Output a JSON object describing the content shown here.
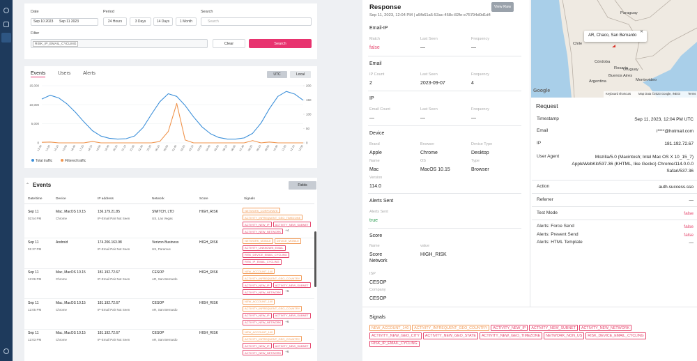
{
  "filters": {
    "date_label": "Date",
    "date_from": "Sep 10 2023",
    "date_to": "Sep 11 2023",
    "period_label": "Period",
    "periods": [
      "24 Hours",
      "3 Days",
      "14 Days",
      "1 Month"
    ],
    "search_label": "Search",
    "search_placeholder": "Search",
    "filter_label": "Filter",
    "filter_tag": "RISK_IP_EMAIL_CYCLING",
    "clear": "Clear",
    "search_button": "Search"
  },
  "chart_tabs": [
    "Events",
    "Users",
    "Alerts"
  ],
  "timezones": [
    "UTC",
    "Local"
  ],
  "chart_data": {
    "type": "line",
    "categories": [
      "13:40",
      "14:25",
      "15:10",
      "15:55",
      "16:40",
      "17:25",
      "18:10",
      "18:55",
      "19:40",
      "20:25",
      "21:10",
      "21:55",
      "22:40",
      "23:25",
      "00:10",
      "00:55",
      "01:40",
      "02:25",
      "03:10",
      "03:55",
      "04:40",
      "05:25",
      "06:10",
      "06:55",
      "07:40",
      "08:25",
      "09:10",
      "09:55",
      "10:40",
      "11:25",
      "12:10",
      "12:55"
    ],
    "series": [
      {
        "name": "Total traffic",
        "color": "#3b8fd9",
        "values": [
          11500,
          12500,
          11800,
          10200,
          8000,
          5500,
          3200,
          1800,
          1200,
          1000,
          1100,
          1800,
          4000,
          7500,
          10800,
          12900,
          12200,
          9800,
          6800,
          4200,
          2400,
          1400,
          1000,
          1000,
          1300,
          2500,
          5200,
          9000,
          12200,
          13500,
          12800,
          11200
        ]
      },
      {
        "name": "Filtered traffic",
        "color": "#f0944d",
        "axis": "y2",
        "values": [
          2,
          3,
          0,
          0,
          0,
          0,
          5,
          0,
          0,
          0,
          0,
          0,
          0,
          0,
          5,
          40,
          138,
          10,
          0,
          0,
          0,
          0,
          0,
          0,
          0,
          8,
          0,
          3,
          0,
          0,
          0,
          0
        ]
      }
    ],
    "ylim": [
      0,
      15000
    ],
    "yticks": [
      0,
      {
        "value": 5000,
        "label": "5,000"
      },
      {
        "value": 10000,
        "label": "10,000"
      },
      {
        "value": 15000,
        "label": "15,000"
      }
    ],
    "y2lim": [
      0,
      200
    ],
    "y2ticks": [
      0,
      50,
      100,
      150,
      200
    ],
    "grid": true,
    "legend": "bottom-left"
  },
  "events": {
    "title": "Events",
    "fields": "Fields",
    "columns": [
      "Date/time",
      "Device",
      "IP address",
      "Network",
      "Score",
      "Signals"
    ],
    "rows": [
      {
        "date": "Sep 11",
        "time": "02:54 PM",
        "device": "Mac, MacOS 10.15",
        "browser": "Chrome",
        "ip": "136.179.21.85",
        "ip_note": "IP-Email Pair Not Seen",
        "network": "SWITCH, LTD",
        "location": "US, Las Vegas",
        "score": "HIGH_RISK",
        "signals": [
          {
            "label": "NETWORK_CORPORATE",
            "color": "#f29d5b"
          },
          {
            "label": "ACTIVITY_INFREQUENT_GEO_TIMEZONE",
            "color": "#f29d5b"
          },
          {
            "label": "ACTIVITY_NEW_IP",
            "color": "#e5476e"
          },
          {
            "label": "ACTIVITY_NEW_SUBNET",
            "color": "#e5476e"
          },
          {
            "label": "ACTIVITY_NEW_NETWORK",
            "color": "#e5476e"
          }
        ],
        "more": "+4"
      },
      {
        "date": "Sep 11",
        "time": "01:37 PM",
        "device": "Android",
        "ip": "174.206.163.98",
        "ip_note": "IP-Email Pair Not Seen",
        "network": "Verizon Business",
        "location": "US, Paramus",
        "score": "HIGH_RISK",
        "signals": [
          {
            "label": "NETWORK_MOBILE",
            "color": "#f29d5b"
          },
          {
            "label": "DEVICE_MOBILE",
            "color": "#f29d5b"
          },
          {
            "label": "ACTIVITY_UNKNOWN_EMAIL",
            "color": "#e5476e"
          },
          {
            "label": "RISK_DEVICE_EMAIL_CYCLING",
            "color": "#e5476e"
          },
          {
            "label": "RISK_IP_EMAIL_CYCLING",
            "color": "#e5476e"
          }
        ]
      },
      {
        "date": "Sep 11",
        "time": "12:06 PM",
        "device": "Mac, MacOS 10.15",
        "browser": "Chrome",
        "ip": "181.192.72.67",
        "ip_note": "IP-Email Pair Not Seen",
        "network": "CESOP",
        "location": "AR, San Bernardo",
        "score": "HIGH_RISK",
        "signals": [
          {
            "label": "NEW_ACCOUNT_140",
            "color": "#f29d5b"
          },
          {
            "label": "ACTIVITY_INFREQUENT_GEO_COUNTRY",
            "color": "#f29d5b"
          },
          {
            "label": "ACTIVITY_NEW_IP",
            "color": "#e5476e"
          },
          {
            "label": "ACTIVITY_NEW_SUBNET",
            "color": "#e5476e"
          },
          {
            "label": "ACTIVITY_NEW_NETWORK",
            "color": "#e5476e"
          }
        ],
        "more": "+6"
      },
      {
        "date": "Sep 11",
        "time": "12:05 PM",
        "device": "Mac, MacOS 10.15",
        "browser": "Chrome",
        "ip": "181.192.72.67",
        "ip_note": "IP-Email Pair Not Seen",
        "network": "CESOP",
        "location": "AR, San Bernardo",
        "score": "HIGH_RISK",
        "signals": [
          {
            "label": "NEW_ACCOUNT_140",
            "color": "#f29d5b"
          },
          {
            "label": "ACTIVITY_INFREQUENT_GEO_COUNTRY",
            "color": "#f29d5b"
          },
          {
            "label": "ACTIVITY_NEW_IP",
            "color": "#e5476e"
          },
          {
            "label": "ACTIVITY_NEW_SUBNET",
            "color": "#e5476e"
          },
          {
            "label": "ACTIVITY_NEW_NETWORK",
            "color": "#e5476e"
          }
        ],
        "more": "+6"
      },
      {
        "date": "Sep 11",
        "time": "12:03 PM",
        "device": "Mac, MacOS 10.15",
        "browser": "Chrome",
        "ip": "181.192.72.67",
        "ip_note": "IP-Email Pair Not Seen",
        "network": "CESOP",
        "location": "AR, San Bernardo",
        "score": "HIGH_RISK",
        "signals": [
          {
            "label": "NEW_ACCOUNT_140",
            "color": "#f29d5b"
          },
          {
            "label": "ACTIVITY_INFREQUENT_GEO_COUNTRY",
            "color": "#f29d5b"
          },
          {
            "label": "ACTIVITY_NEW_IP",
            "color": "#e5476e"
          },
          {
            "label": "ACTIVITY_NEW_SUBNET",
            "color": "#e5476e"
          },
          {
            "label": "ACTIVITY_NEW_NETWORK",
            "color": "#e5476e"
          }
        ],
        "more": "+6"
      }
    ]
  },
  "response": {
    "title": "Response",
    "subtitle": "Sep 11, 2023, 12:04 PM | a5fb61a5-53ac-458c-82fe-e75794d0d1d4",
    "view_raw": "View Raw",
    "sections": [
      {
        "title": "Email-IP",
        "fields": [
          {
            "label": "Match",
            "value": "false",
            "color": "#e5476e"
          },
          {
            "label": "Last Seen",
            "value": "—"
          },
          {
            "label": "Frequency",
            "value": "—"
          }
        ]
      },
      {
        "title": "Email",
        "fields": [
          {
            "label": "IP Count",
            "value": "2"
          },
          {
            "label": "Last Seen",
            "value": "2023-09-07"
          },
          {
            "label": "Frequency",
            "value": "4"
          }
        ]
      },
      {
        "title": "IP",
        "fields": [
          {
            "label": "Email Count",
            "value": "—"
          },
          {
            "label": "Last Seen",
            "value": "—"
          },
          {
            "label": "Frequency",
            "value": "—"
          }
        ]
      },
      {
        "title": "Device",
        "fields": [
          {
            "label": "Brand",
            "value": "Apple"
          },
          {
            "label": "Browser",
            "value": "Chrome"
          },
          {
            "label": "Device Type",
            "value": "Desktop"
          },
          {
            "label": "Name",
            "value": "Mac"
          },
          {
            "label": "OS",
            "value": "MacOS 10.15"
          },
          {
            "label": "Type",
            "value": "Browser"
          },
          {
            "label": "Version",
            "value": "114.0"
          }
        ]
      },
      {
        "title": "Alerts Sent",
        "fields": [
          {
            "label": "Alerts Sent",
            "value": "true",
            "color": "#2f9e55"
          }
        ]
      },
      {
        "title": "Score",
        "fields": [
          {
            "label": "Name",
            "value": "Score Network"
          },
          {
            "label": "value",
            "value": "HIGH_RISK"
          },
          {
            "label": "ISP",
            "value": "CESOP"
          },
          {
            "label": "Company",
            "value": "CESOP"
          }
        ]
      }
    ],
    "signals_title": "Signals",
    "signals": [
      {
        "label": "NEW_ACCOUNT_140",
        "color": "#f29d5b"
      },
      {
        "label": "ACTIVITY_INFREQUENT_GEO_COUNTRY",
        "color": "#f29d5b"
      },
      {
        "label": "ACTIVITY_NEW_IP",
        "color": "#e5476e"
      },
      {
        "label": "ACTIVITY_NEW_SUBNET",
        "color": "#e5476e"
      },
      {
        "label": "ACTIVITY_NEW_NETWORK",
        "color": "#e5476e"
      },
      {
        "label": "ACTIVITY_NEW_GEO_CITY",
        "color": "#e5476e"
      },
      {
        "label": "ACTIVITY_NEW_GEO_STATE",
        "color": "#e5476e"
      },
      {
        "label": "ACTIVITY_NEW_GEO_TIMEZONE",
        "color": "#e5476e"
      },
      {
        "label": "NETWORK_NON_US",
        "color": "#e5476e"
      },
      {
        "label": "RISK_DEVICE_EMAIL_CYCLING",
        "color": "#e5476e"
      },
      {
        "label": "RISK_IP_EMAIL_CYCLING",
        "color": "#e5476e"
      }
    ]
  },
  "map": {
    "labels": [
      "Paraguay",
      "Chile",
      "Córdoba",
      "Rosario",
      "Uruguay",
      "Buenos Aires",
      "Argentina",
      "Montevideo"
    ],
    "popup": "AR, Chaco, San Bernardo",
    "google": "Google",
    "shortcuts": "Keyboard shortcuts",
    "attribution": "Map Data ©2023 Google, INEGI",
    "terms": "Terms"
  },
  "request": {
    "title": "Request",
    "rows": [
      {
        "label": "Timestamp",
        "value": "Sep 11, 2023, 12:04 PM UTC"
      },
      {
        "label": "Email",
        "value": "i****@hotmail.com"
      },
      {
        "label": "IP",
        "value": "181.192.72.67"
      },
      {
        "label": "User Agent",
        "value": "Mozilla/5.0 (Macintosh; Intel Mac OS X 10_15_7) AppleWebKit/537.36 (KHTML, like Gecko) Chrome/114.0.0.0 Safari/537.36"
      },
      {
        "label": "Action",
        "value": "auth.success.sso"
      },
      {
        "label": "Referrer",
        "value": "—"
      },
      {
        "label": "Test Mode",
        "value": "false",
        "color": "#e5476e"
      },
      {
        "label": "Alerts: Force Send",
        "value": "false",
        "color": "#e5476e"
      },
      {
        "label": "Alerts: Prevent Send",
        "value": "false",
        "color": "#e5476e"
      },
      {
        "label": "Alerts: HTML Template",
        "value": "—"
      }
    ]
  }
}
